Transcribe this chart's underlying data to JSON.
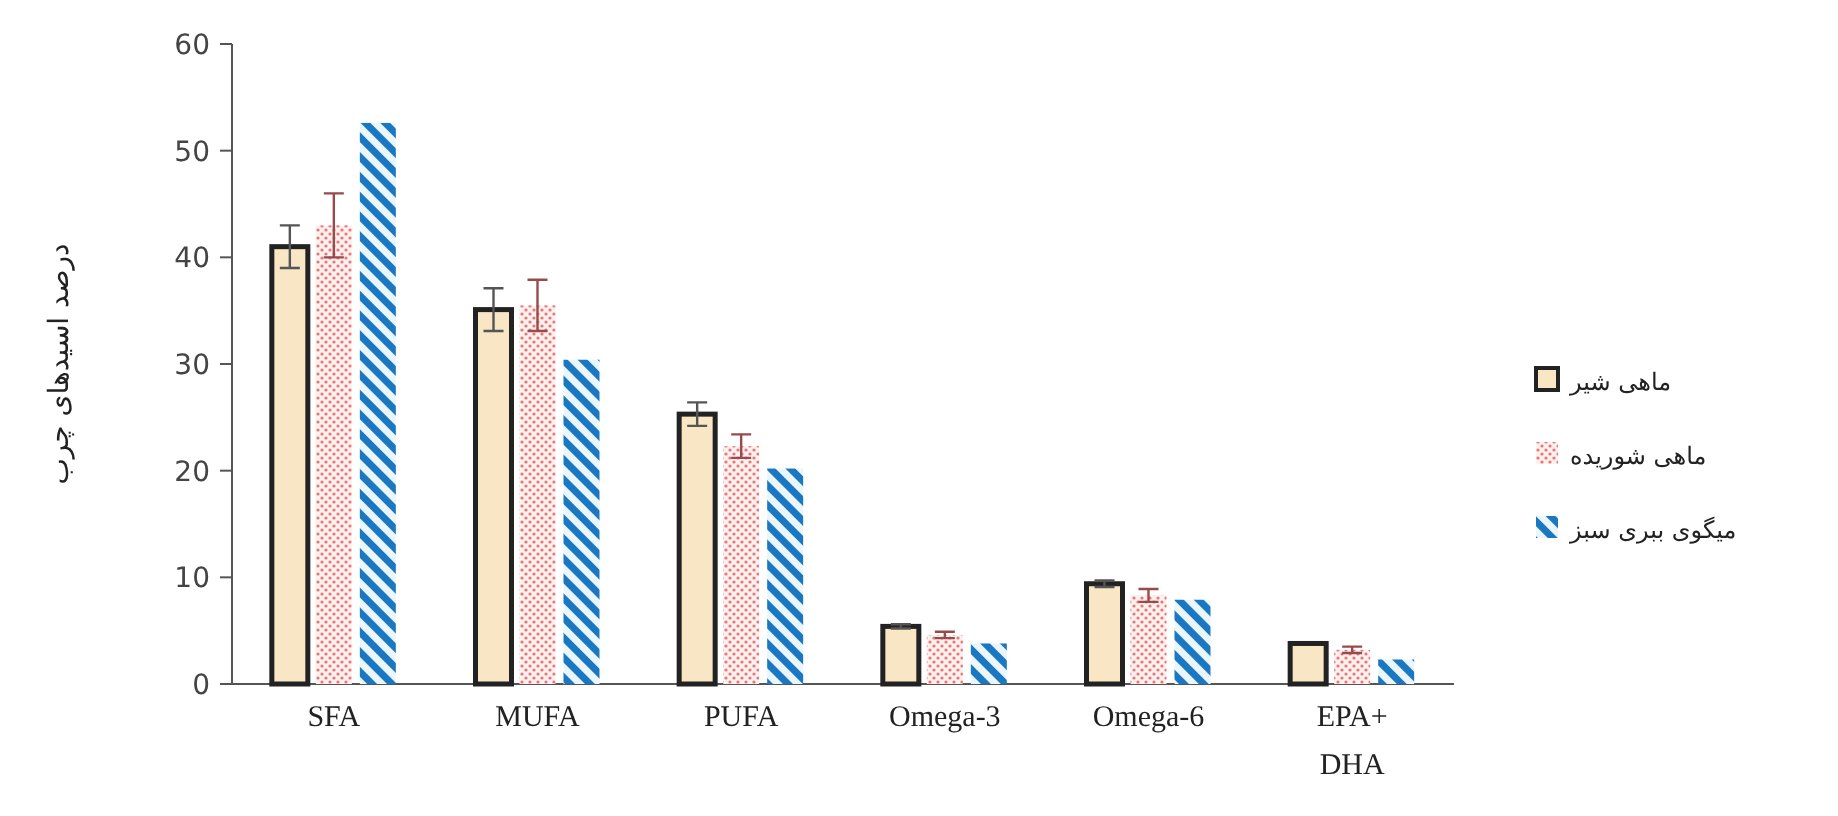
{
  "chart_data": {
    "type": "bar",
    "categories": [
      "SFA",
      "MUFA",
      "PUFA",
      "Omega-3",
      "Omega-6",
      "EPA+\nDHA"
    ],
    "ylabel": "درصد اسیدهای چرب",
    "ylim": [
      0,
      60
    ],
    "yticks": [
      0,
      10,
      20,
      30,
      40,
      50,
      60
    ],
    "grid": false,
    "legend": "right",
    "series": [
      {
        "name": "ماهی شیر",
        "color": "#f8e6c4",
        "values": [
          41,
          35.1,
          25.3,
          5.4,
          9.4,
          3.8
        ],
        "errors": [
          2,
          2,
          1.1,
          0.2,
          0.3,
          null
        ]
      },
      {
        "name": "ماهی شوریده",
        "color": "#e87878",
        "values": [
          43,
          35.5,
          22.3,
          4.6,
          8.3,
          3.2
        ],
        "errors": [
          3,
          2.4,
          1.1,
          0.3,
          0.6,
          0.3
        ]
      },
      {
        "name": "میگوی ببری سبز",
        "color": "#1a78c2",
        "values": [
          52.6,
          30.4,
          20.2,
          3.8,
          7.9,
          2.3
        ]
      }
    ]
  }
}
